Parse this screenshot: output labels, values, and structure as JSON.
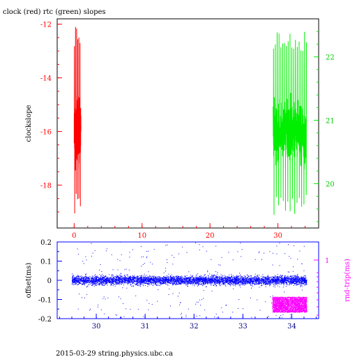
{
  "title": "clock (red) rtc (green) slopes",
  "footer": "2015-03-29 string.physics.ubc.ca",
  "colors": {
    "clock": "#ff0000",
    "rtc": "#00ee00",
    "offset": "#0000ff",
    "rndtrip": "#ff00ff",
    "frame": "#000000"
  },
  "chart_data": [
    {
      "type": "line",
      "ylabel": "clockslope",
      "y2label": "",
      "xlim": [
        -2.5,
        36
      ],
      "ylim": [
        -19.6,
        -11.8
      ],
      "y2lim": [
        19.3,
        22.6
      ],
      "xticks": [
        "0",
        "10",
        "20",
        "30"
      ],
      "yticks": [
        "-12",
        "-14",
        "-16",
        "-18"
      ],
      "y2ticks": [
        "22",
        "21",
        "20"
      ],
      "series": [
        {
          "name": "clock",
          "axis": "left",
          "x_range": [
            0.0,
            1.0
          ],
          "y_center": -15.9,
          "y_min": -19.1,
          "y_max": -12.1
        },
        {
          "name": "rtc",
          "axis": "right",
          "x_range": [
            29.3,
            34.2
          ],
          "y_center": 20.8,
          "y_min": 19.5,
          "y_max": 22.4
        }
      ]
    },
    {
      "type": "scatter",
      "ylabel": "offset(ms)",
      "y2label": "rnd-trip(ms)",
      "xlim": [
        29.2,
        34.55
      ],
      "ylim": [
        -0.2,
        0.2
      ],
      "xticks": [
        "30",
        "31",
        "32",
        "33",
        "34"
      ],
      "yticks": [
        "0.2",
        "0.1",
        "0",
        "-0.1",
        "-0.2"
      ],
      "y2ticks": [
        "1"
      ],
      "y2_scale": "log",
      "series": [
        {
          "name": "offset",
          "axis": "left",
          "x_range": [
            29.5,
            34.3
          ],
          "y_center": 0.0,
          "y_spread": 0.03
        },
        {
          "name": "rnd-trip",
          "axis": "right",
          "x_range": [
            33.6,
            34.3
          ],
          "y_center": 0.45,
          "y_spread": 0.08
        }
      ]
    }
  ]
}
